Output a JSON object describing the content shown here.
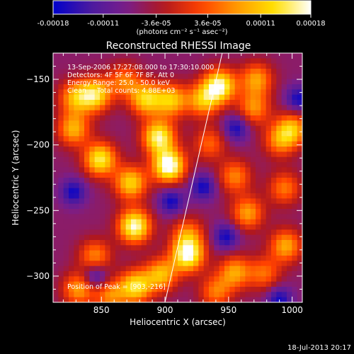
{
  "chart_data": {
    "type": "heatmap",
    "title": "Reconstructed RHESSI Image",
    "xlabel": "Heliocentric X (arcsec)",
    "ylabel": "Heliocentric Y (arcsec)",
    "xlim": [
      812,
      1008
    ],
    "ylim": [
      -320,
      -130
    ],
    "x_ticks": [
      850,
      900,
      950,
      1000
    ],
    "y_ticks": [
      -150,
      -200,
      -250,
      -300
    ],
    "x_tick_labels": [
      "850",
      "900",
      "950",
      "1000"
    ],
    "y_tick_labels": [
      "−150",
      "−200",
      "−250",
      "−300"
    ],
    "colorbar": {
      "range": [
        -0.00018,
        0.00018
      ],
      "ticks": [
        -0.00018,
        -0.00011,
        -3.6e-05,
        3.6e-05,
        0.00011,
        0.00018
      ],
      "tick_labels": [
        "-0.00018",
        "-0.00011",
        "-3.6e-05",
        "3.6e-05",
        "0.00011",
        "0.00018"
      ],
      "unit_label": "(photons cm⁻² s⁻¹ asec⁻²)"
    },
    "annotations": [
      "13-Sep-2006 17:27:08.000 to 17:30:10.000",
      "Detectors: 4F 5F 6F 7F 8F, Att 0",
      "Energy Range: 25.0 - 50.0 keV",
      "Clean     Total counts: 4.88E+03"
    ],
    "peak_label": "Position of Peak = [903,-216]",
    "limb_line": {
      "x": [
        900,
        945
      ],
      "y": [
        -320,
        -130
      ]
    },
    "colormap": [
      "#0000cc",
      "#4a1aa0",
      "#7a1e8a",
      "#b0181e",
      "#ff4000",
      "#ff9a00",
      "#ffe000",
      "#ffffff"
    ],
    "sources": [
      {
        "x": 903,
        "y": -216,
        "amp": 1.0
      },
      {
        "x": 895,
        "y": -194,
        "amp": 0.85
      },
      {
        "x": 876,
        "y": -262,
        "amp": 0.92
      },
      {
        "x": 873,
        "y": -229,
        "amp": 0.7
      },
      {
        "x": 849,
        "y": -211,
        "amp": 0.8
      },
      {
        "x": 828,
        "y": -188,
        "amp": 0.6
      },
      {
        "x": 829,
        "y": -164,
        "amp": 0.55
      },
      {
        "x": 845,
        "y": -162,
        "amp": 0.75
      },
      {
        "x": 868,
        "y": -151,
        "amp": 0.45
      },
      {
        "x": 905,
        "y": -166,
        "amp": 0.65
      },
      {
        "x": 885,
        "y": -165,
        "amp": 0.7
      },
      {
        "x": 930,
        "y": -166,
        "amp": 0.6
      },
      {
        "x": 943,
        "y": -155,
        "amp": 0.88
      },
      {
        "x": 972,
        "y": -150,
        "amp": 0.55
      },
      {
        "x": 970,
        "y": -172,
        "amp": 0.5
      },
      {
        "x": 955,
        "y": -224,
        "amp": 0.48
      },
      {
        "x": 990,
        "y": -197,
        "amp": 0.45
      },
      {
        "x": 994,
        "y": -233,
        "amp": 0.45
      },
      {
        "x": 1000,
        "y": -188,
        "amp": 0.6
      },
      {
        "x": 995,
        "y": -277,
        "amp": 0.58
      },
      {
        "x": 978,
        "y": -298,
        "amp": 0.42
      },
      {
        "x": 955,
        "y": -297,
        "amp": 0.55
      },
      {
        "x": 918,
        "y": -284,
        "amp": 0.9
      },
      {
        "x": 918,
        "y": -268,
        "amp": 0.45
      },
      {
        "x": 897,
        "y": -299,
        "amp": 0.62
      },
      {
        "x": 877,
        "y": -308,
        "amp": 0.75
      },
      {
        "x": 845,
        "y": -285,
        "amp": 0.5
      },
      {
        "x": 832,
        "y": -310,
        "amp": 0.55
      },
      {
        "x": 857,
        "y": -315,
        "amp": 0.48
      },
      {
        "x": 965,
        "y": -252,
        "amp": 0.55
      },
      {
        "x": 940,
        "y": -312,
        "amp": 0.45
      },
      {
        "x": 935,
        "y": -199,
        "amp": 0.4
      }
    ],
    "dark_spots": [
      {
        "x": 1005,
        "y": -165
      },
      {
        "x": 930,
        "y": -232
      },
      {
        "x": 948,
        "y": -270
      },
      {
        "x": 828,
        "y": -236
      },
      {
        "x": 845,
        "y": -300
      },
      {
        "x": 905,
        "y": -243
      },
      {
        "x": 990,
        "y": -318
      },
      {
        "x": 956,
        "y": -187
      }
    ]
  },
  "footer": {
    "timestamp": "18-Jul-2013 20:17"
  }
}
